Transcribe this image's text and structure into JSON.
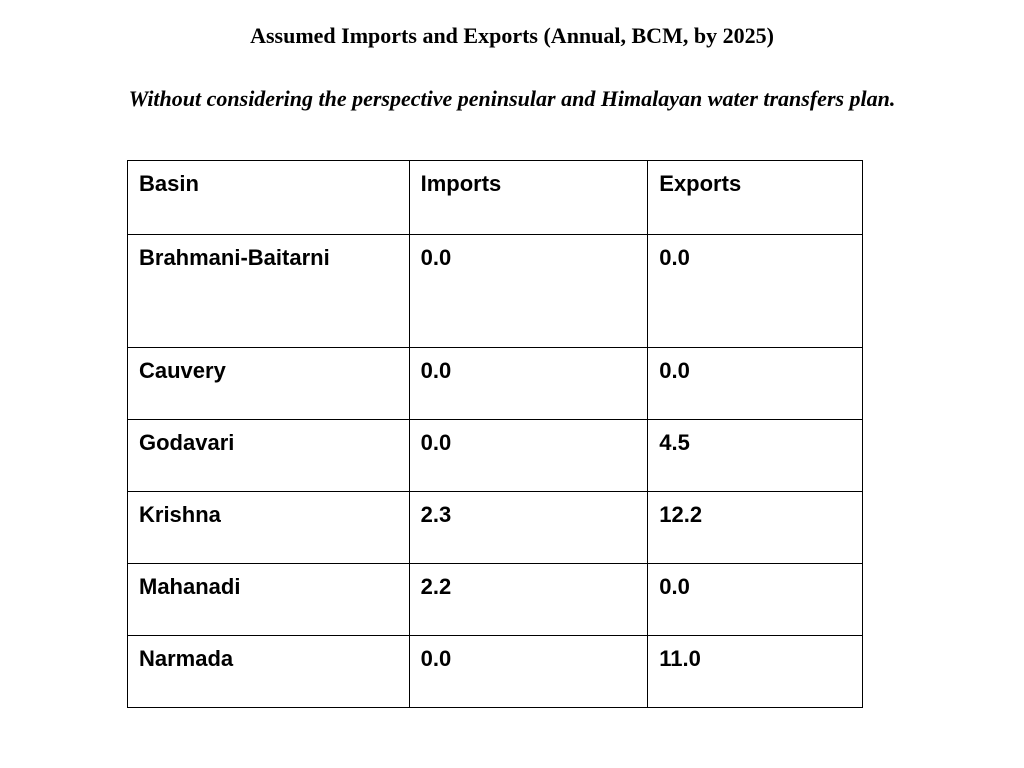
{
  "document": {
    "title": "Assumed Imports and Exports (Annual, BCM, by 2025)",
    "subtitle": "Without considering the perspective peninsular and Himalayan water transfers plan."
  },
  "table": {
    "headers": [
      "Basin",
      "Imports",
      "Exports"
    ],
    "rows": [
      {
        "basin": "Brahmani-Baitarni",
        "imports": "0.0",
        "exports": "0.0"
      },
      {
        "basin": "Cauvery",
        "imports": "0.0",
        "exports": "0.0"
      },
      {
        "basin": "Godavari",
        "imports": "0.0",
        "exports": "4.5"
      },
      {
        "basin": "Krishna",
        "imports": "2.3",
        "exports": "12.2"
      },
      {
        "basin": "Mahanadi",
        "imports": "2.2",
        "exports": "0.0"
      },
      {
        "basin": "Narmada",
        "imports": "0.0",
        "exports": "11.0"
      }
    ]
  }
}
